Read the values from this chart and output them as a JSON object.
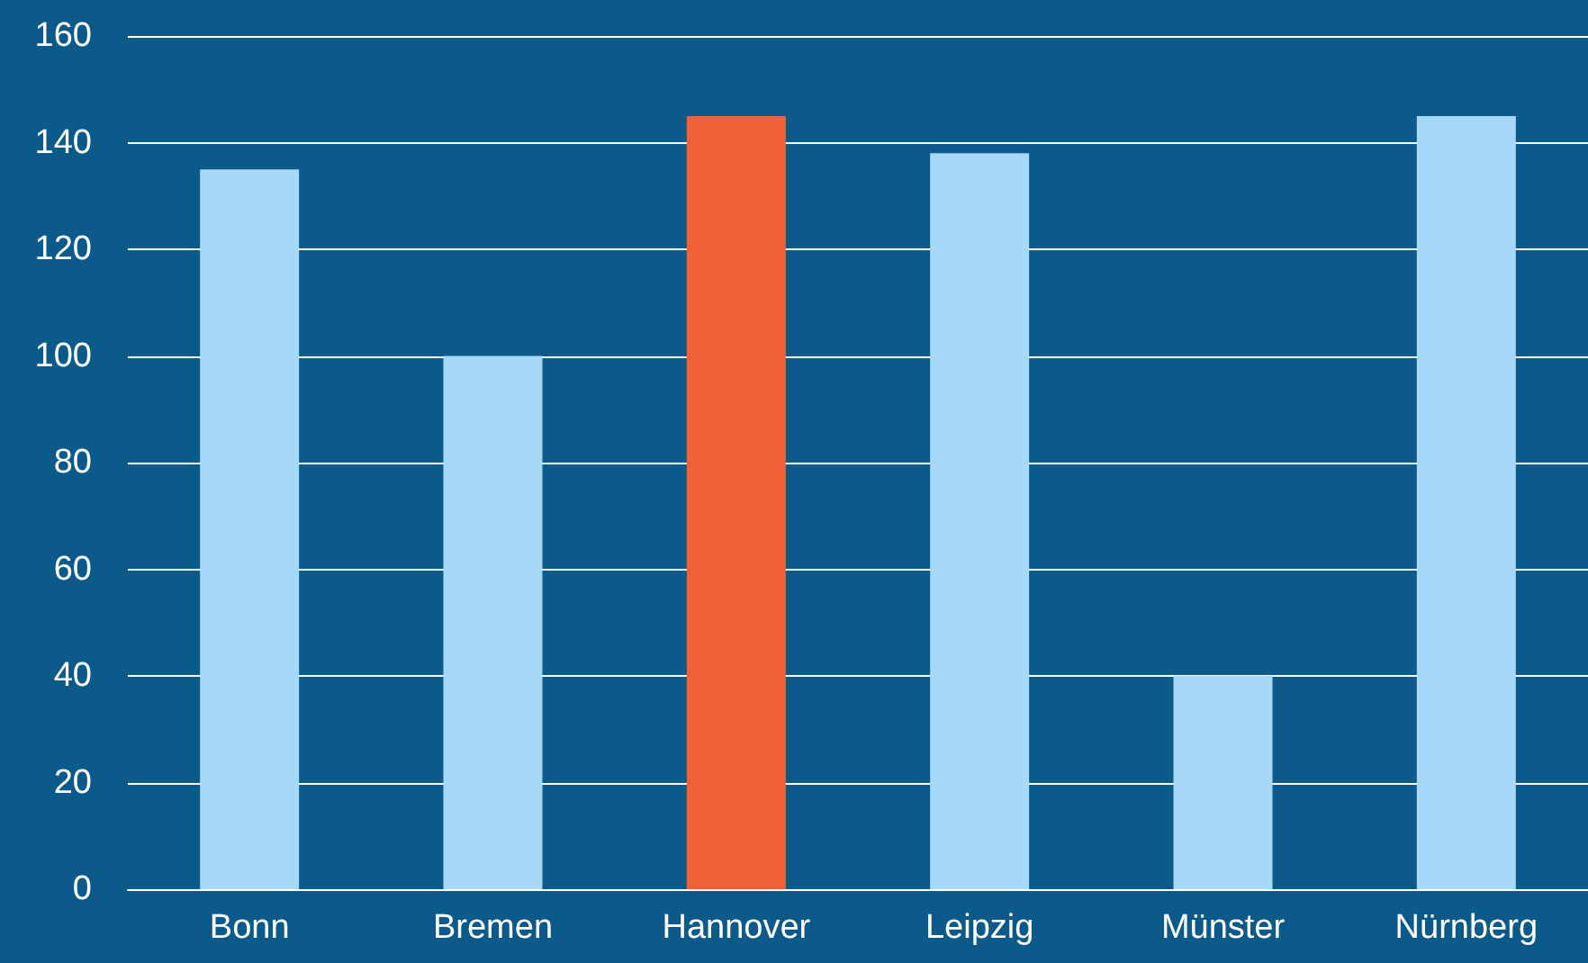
{
  "chart_data": {
    "type": "bar",
    "categories": [
      "Bonn",
      "Bremen",
      "Hannover",
      "Leipzig",
      "Münster",
      "Nürnberg"
    ],
    "values": [
      135,
      100,
      145,
      138,
      40,
      145
    ],
    "colors": [
      "#a6d8f7",
      "#a6d8f7",
      "#f26135",
      "#a6d8f7",
      "#a6d8f7",
      "#a6d8f7"
    ],
    "ylim": [
      0,
      160
    ],
    "yticks": [
      0,
      20,
      40,
      60,
      80,
      100,
      120,
      140,
      160
    ],
    "grid": "y"
  }
}
